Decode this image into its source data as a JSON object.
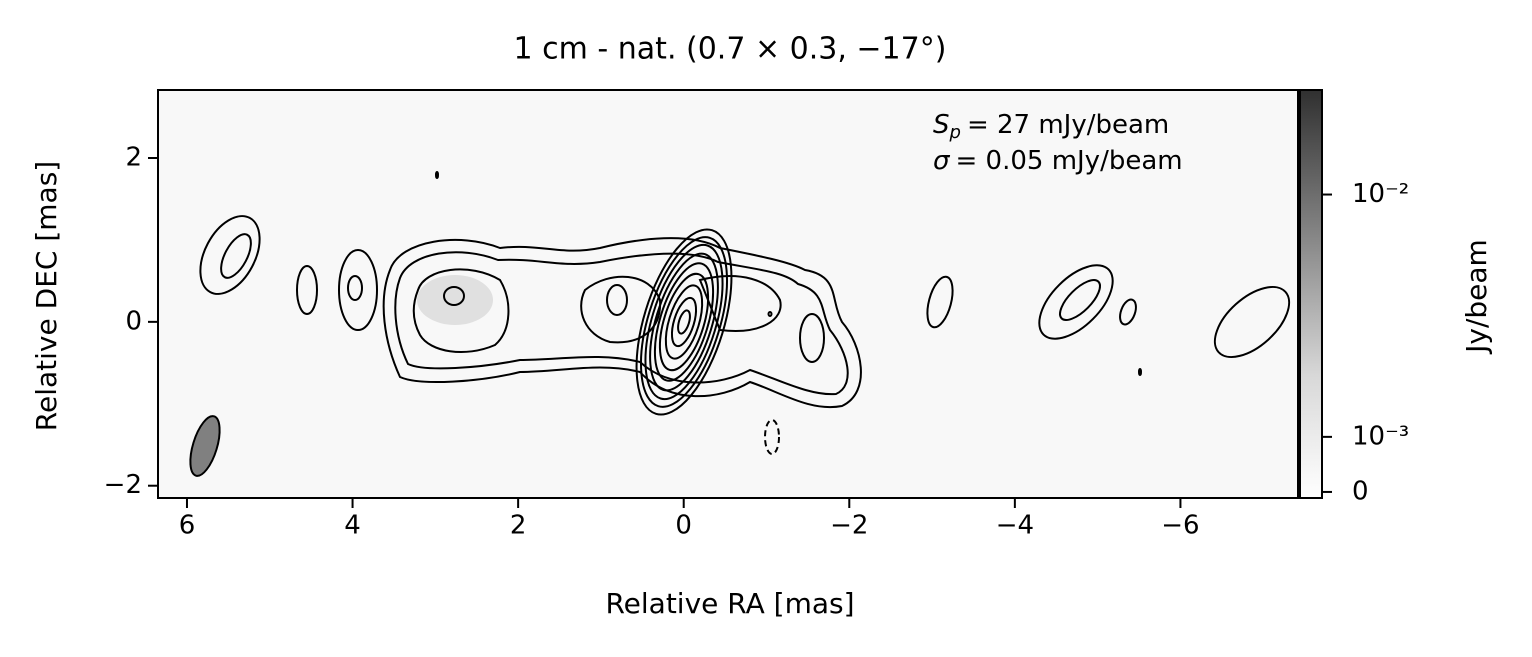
{
  "chart_data": {
    "type": "image",
    "title": "1 cm - nat. (0.7 × 0.3, −17°)",
    "title_color": "#800080",
    "xlabel": "Relative RA [mas]",
    "ylabel": "Relative DEC [mas]",
    "xlim": [
      6.35,
      -7.42
    ],
    "xticks": [
      6,
      4,
      2,
      0,
      {
        "value": -2,
        "label": "−2"
      },
      {
        "value": -4,
        "label": "−4"
      },
      {
        "value": -6,
        "label": "−6"
      }
    ],
    "ylim": [
      -2.15,
      2.83
    ],
    "yticks": [
      {
        "value": -2,
        "label": "−2"
      },
      0,
      2
    ],
    "annotations": [
      {
        "symbol": "S",
        "subscript": "p",
        "text": "= 27 mJy/beam"
      },
      {
        "symbol": "σ",
        "text": "= 0.05 mJy/beam"
      }
    ],
    "colorbar": {
      "label": "Jy/beam",
      "scale": "symlog",
      "clim": [
        -0.00011,
        0.027
      ],
      "ticks": [
        0,
        {
          "value": 0.001,
          "label": "10⁻³"
        },
        {
          "value": 0.01,
          "label": "10⁻²"
        }
      ]
    }
  }
}
